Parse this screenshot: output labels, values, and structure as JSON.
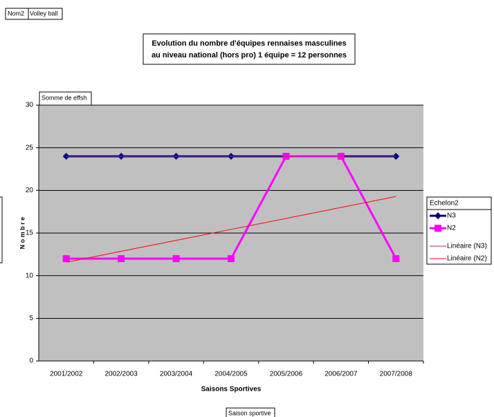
{
  "page": {
    "filter_field": "Nom2",
    "filter_value": "Volley ball",
    "data_field": "Somme de effsh",
    "row_field": "Saison sportive"
  },
  "chart_data": {
    "type": "line",
    "title": [
      "Evolution du nombre d'équipes rennaises masculines",
      "au niveau national (hors pro)  1 équipe = 12 personnes"
    ],
    "x_label": "Saisons Sportives",
    "y_label": "N o m b r e",
    "legend_title": "Echelon2",
    "legend": "right",
    "grid": true,
    "categories": [
      "2001/2002",
      "2002/2003",
      "2003/2004",
      "2004/2005",
      "2005/2006",
      "2006/2007",
      "2007/2008"
    ],
    "ylim": [
      0,
      30
    ],
    "yticks": [
      0,
      5,
      10,
      15,
      20,
      25,
      30
    ],
    "series": [
      {
        "name": "N3",
        "color": "#000080",
        "marker": "diamond",
        "width": 3,
        "values": [
          24,
          24,
          24,
          24,
          24,
          24,
          24
        ]
      },
      {
        "name": "N2",
        "color": "#ff00ff",
        "marker": "square",
        "width": 3,
        "values": [
          12,
          12,
          12,
          12,
          24,
          24,
          12
        ]
      },
      {
        "name": "Linéaire (N3)",
        "color": "#993366",
        "width": 1,
        "values": [
          24,
          24,
          24,
          24,
          24,
          24,
          24
        ]
      },
      {
        "name": "Linéaire (N2)",
        "color": "#ff0000",
        "width": 1,
        "values": [
          11.57,
          12.86,
          14.14,
          15.43,
          16.71,
          18,
          19.29
        ]
      }
    ]
  }
}
